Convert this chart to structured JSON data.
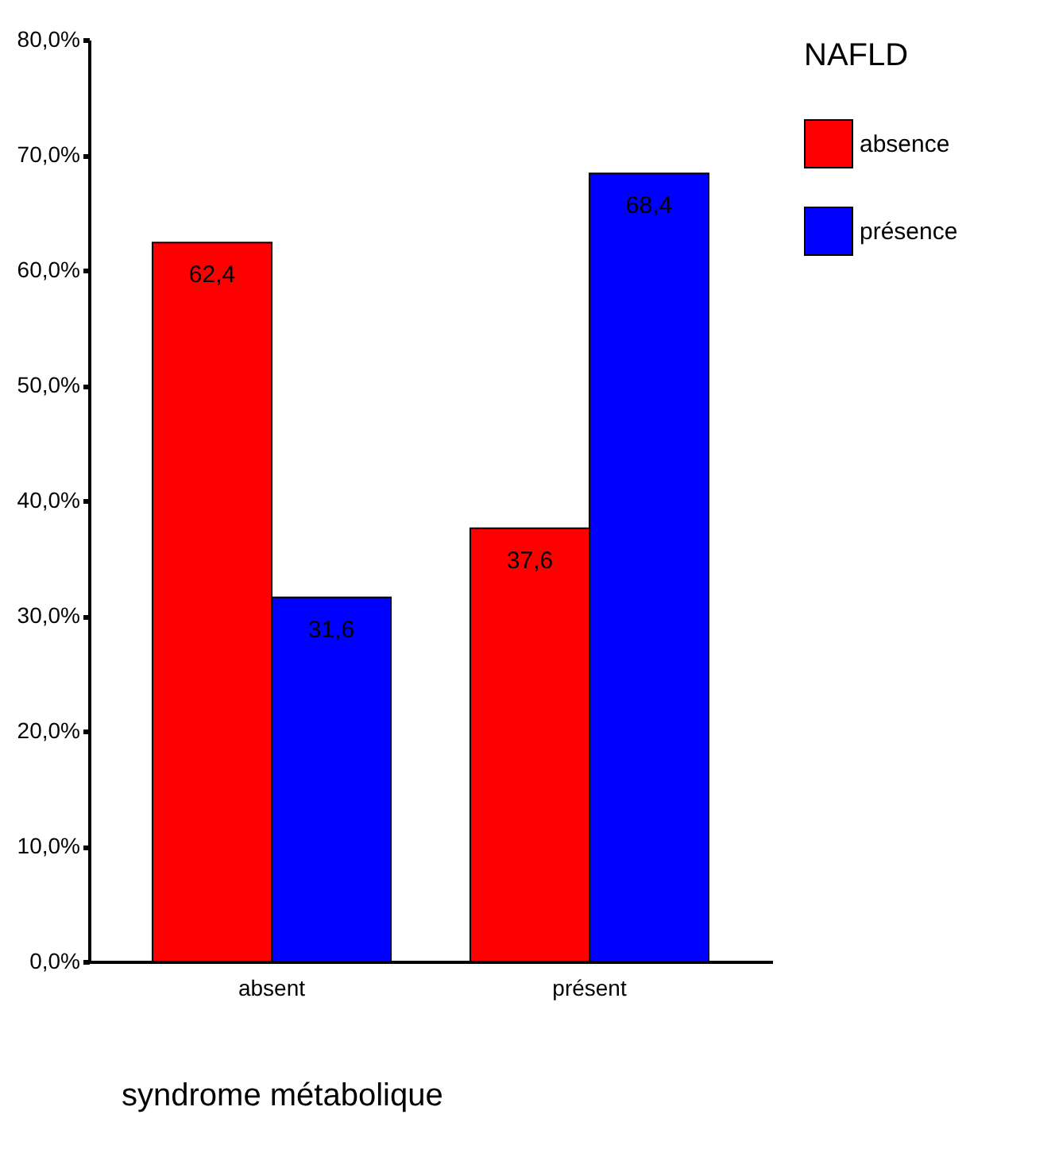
{
  "chart_data": {
    "type": "bar",
    "xlabel": "syndrome métabolique",
    "legend_title": "NAFLD",
    "categories": [
      "absent",
      "présent"
    ],
    "series": [
      {
        "name": "absence",
        "color": "#ff0000",
        "values": [
          62.4,
          37.6
        ],
        "value_labels": [
          "62,4",
          "37,6"
        ]
      },
      {
        "name": "présence",
        "color": "#0000ff",
        "values": [
          31.6,
          68.4
        ],
        "value_labels": [
          "31,6",
          "68,4"
        ]
      }
    ],
    "ylim": [
      0,
      80
    ],
    "yticks": [
      {
        "value": 0,
        "label": "0,0%"
      },
      {
        "value": 10,
        "label": "10,0%"
      },
      {
        "value": 20,
        "label": "20,0%"
      },
      {
        "value": 30,
        "label": "30,0%"
      },
      {
        "value": 40,
        "label": "40,0%"
      },
      {
        "value": 50,
        "label": "50,0%"
      },
      {
        "value": 60,
        "label": "60,0%"
      },
      {
        "value": 70,
        "label": "70,0%"
      },
      {
        "value": 80,
        "label": "80,0%"
      }
    ],
    "grid": false,
    "legend": "right"
  }
}
